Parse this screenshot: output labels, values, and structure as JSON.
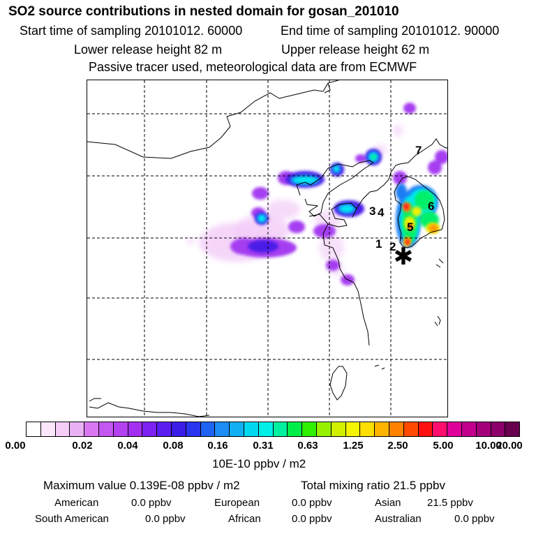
{
  "header": {
    "title": "SO2 source contributions in nested domain for gosan_201010",
    "start_time": "Start time of sampling 20101012. 60000",
    "end_time": "End time of sampling 20101012. 90000",
    "lower_height": "Lower release height   82 m",
    "upper_height": "Upper release height   62 m",
    "tracer_note": "Passive tracer used, meteorological data are from ECMWF"
  },
  "map": {
    "region": "East Asia (eastern China, Korean Peninsula, Taiwan)",
    "receptor_symbol": "✱",
    "receptor_name": "gosan",
    "source_labels": [
      "1",
      "2",
      "3",
      "4",
      "5",
      "6",
      "7"
    ],
    "plume_colors": {
      "faint": "#f2ccf7",
      "light": "#e3a6f3",
      "violet": "#a53cf0",
      "blue_violet": "#7a2cf5",
      "deep_blue": "#4c1ee8",
      "blue": "#1f7df3",
      "cyan": "#00e8f0",
      "green": "#00f06a",
      "yellow_green": "#c8f000",
      "yellow": "#f0f000",
      "orange": "#ff9a00",
      "red": "#ff1c1c"
    }
  },
  "colorbar": {
    "colors": [
      "#ffffff",
      "#fbe6fb",
      "#f4ccf6",
      "#eab0f4",
      "#d978f2",
      "#c357f0",
      "#b441ef",
      "#a52ff0",
      "#7d22f3",
      "#5a1ff0",
      "#3b1de8",
      "#2a35f0",
      "#1f63f3",
      "#1c8df4",
      "#10b0f2",
      "#00d8f0",
      "#00f0e8",
      "#00f0a0",
      "#00ee4a",
      "#2ef000",
      "#96f000",
      "#d0f000",
      "#f5f500",
      "#ffdf00",
      "#ffb400",
      "#ff8200",
      "#ff4a00",
      "#ff1010",
      "#ff0d6e",
      "#e0009a",
      "#c1008e",
      "#a3007a",
      "#8b006a",
      "#68004e"
    ],
    "ticks": [
      "0.00",
      "0.02",
      "0.04",
      "0.08",
      "0.16",
      "0.31",
      "0.63",
      "1.25",
      "2.50",
      "5.00",
      "10.00",
      "20.00"
    ],
    "unit": "10E-10 ppbv / m2"
  },
  "summary": {
    "max_value": "Maximum value  0.139E-08 ppbv / m2",
    "total_mixing": "Total mixing ratio       21.5 ppbv",
    "american_label": "American",
    "american_value": "0.0 ppbv",
    "european_label": "European",
    "european_value": "0.0 ppbv",
    "asian_label": "Asian",
    "asian_value": "21.5 ppbv",
    "south_american_label": "South American",
    "south_american_value": "0.0 ppbv",
    "african_label": "African",
    "african_value": "0.0 ppbv",
    "australian_label": "Australian",
    "australian_value": "0.0 ppbv"
  }
}
